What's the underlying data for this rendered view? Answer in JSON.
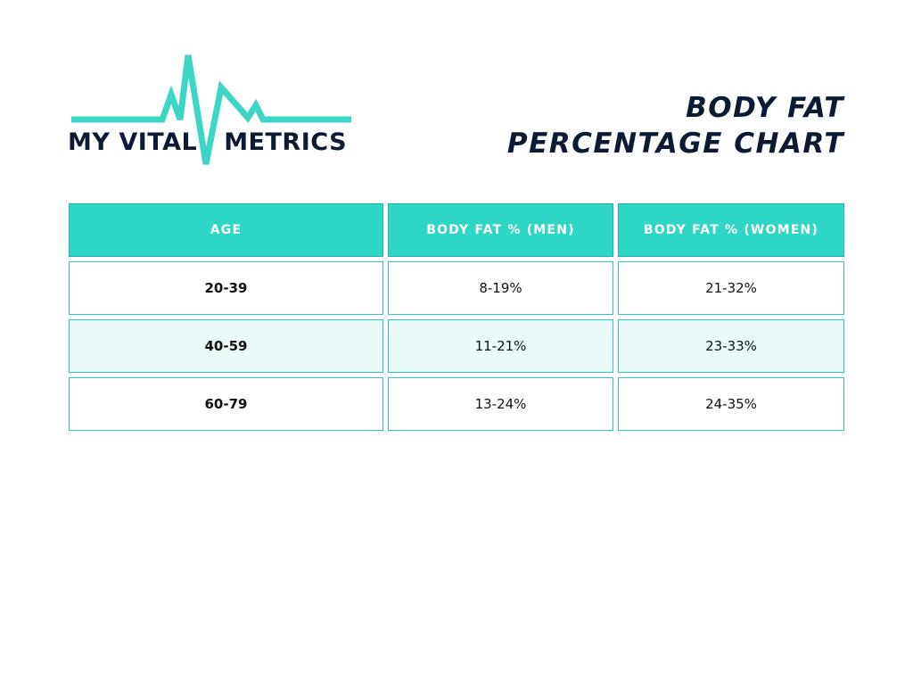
{
  "logo": {
    "left_word": "MY VITAL",
    "right_word": "METRICS",
    "pulse_color": "#3dd6c6",
    "icon": "heartbeat-pulse-line"
  },
  "title": {
    "line1": "BODY FAT",
    "line2": "PERCENTAGE CHART"
  },
  "table": {
    "headers": [
      "AGE",
      "BODY FAT % (MEN)",
      "BODY FAT % (WOMEN)"
    ],
    "rows": [
      {
        "age": "20-39",
        "men": "8-19%",
        "women": "21-32%"
      },
      {
        "age": "40-59",
        "men": "11-21%",
        "women": "23-33%"
      },
      {
        "age": "60-79",
        "men": "13-24%",
        "women": "24-35%"
      }
    ]
  },
  "colors": {
    "accent": "#2ed6c6",
    "alt_row": "#e8fbf9",
    "text_dark": "#0c1a33"
  }
}
